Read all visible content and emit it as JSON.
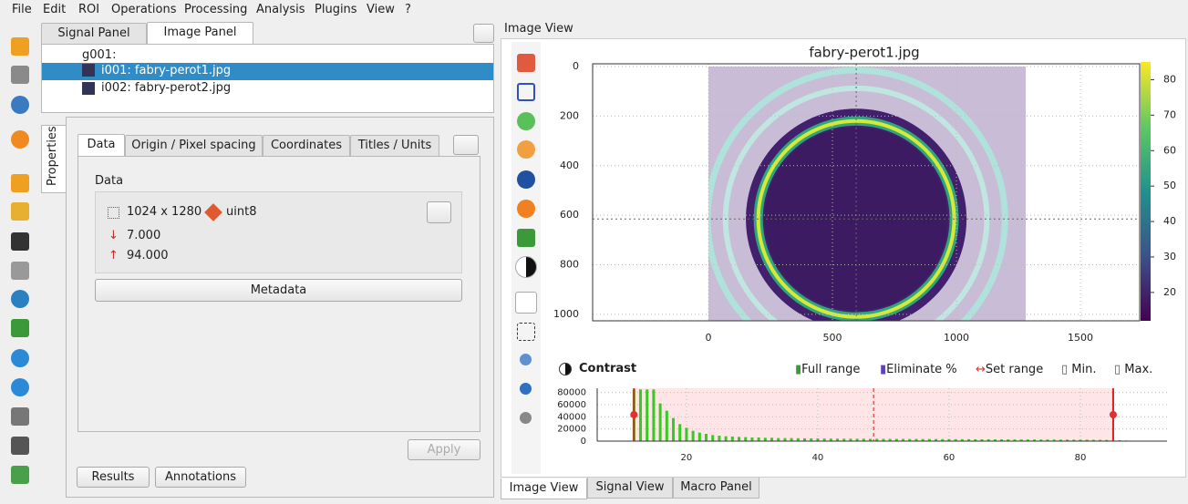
{
  "menu": [
    "File",
    "Edit",
    "ROI",
    "Operations",
    "Processing",
    "Analysis",
    "Plugins",
    "View",
    "?"
  ],
  "panel_tabs": [
    "Signal Panel",
    "Image Panel"
  ],
  "tree": {
    "group": "g001:",
    "items": [
      "i001: fabry-perot1.jpg",
      "i002: fabry-perot2.jpg"
    ]
  },
  "properties": {
    "side_tab": "Properties",
    "tabs": [
      "Data",
      "Origin / Pixel spacing",
      "Coordinates",
      "Titles / Units"
    ],
    "group_title": "Data",
    "shape": "1024 x 1280",
    "dtype": "uint8",
    "min": "7.000",
    "max": "94.000",
    "metadata_button": "Metadata",
    "apply_button": "Apply"
  },
  "bottom_buttons": [
    "Results",
    "Annotations"
  ],
  "image_view": {
    "title": "Image View",
    "plot": {
      "title": "fabry-perot1.jpg",
      "xlim": [
        -467,
        1739
      ],
      "ylim": [
        -11,
        1026
      ],
      "xticks": [
        0,
        500,
        1000,
        1500
      ],
      "yticks": [
        0,
        200,
        400,
        600,
        800,
        1000
      ],
      "image_width": 1280,
      "image_height": 1024,
      "colorbar": {
        "lim": [
          12,
          85
        ],
        "ticks": [
          20,
          30,
          40,
          50,
          60,
          70,
          80
        ]
      }
    },
    "contrast": {
      "title": "Contrast",
      "buttons": [
        "Full range",
        "Eliminate %",
        "Set range",
        "Min.",
        "Max."
      ],
      "histogram": {
        "xlim": [
          6.4,
          93.2
        ],
        "ylim": [
          0,
          87000
        ],
        "xticks": [
          20,
          40,
          60,
          80
        ],
        "yticks": [
          0,
          20000,
          40000,
          60000,
          80000
        ],
        "x": [
          12,
          13,
          14,
          15,
          16,
          17,
          18,
          19,
          20,
          21,
          22,
          23,
          24,
          25,
          26,
          27,
          28,
          29,
          30,
          31,
          32,
          33,
          34,
          35,
          36,
          37,
          38,
          39,
          40,
          41,
          42,
          43,
          44,
          45,
          46,
          47,
          48,
          49,
          50,
          51,
          52,
          53,
          54,
          55,
          56,
          57,
          58,
          59,
          60,
          61,
          62,
          63,
          64,
          65,
          66,
          67,
          68,
          69,
          70,
          71,
          72,
          73,
          74,
          75,
          76,
          77,
          78,
          79,
          80,
          81,
          82,
          83,
          84,
          85,
          86,
          87,
          88
        ],
        "counts": [
          85000,
          85000,
          85000,
          85000,
          62000,
          50000,
          38000,
          28000,
          22000,
          17000,
          14000,
          12000,
          10000,
          9000,
          8000,
          7500,
          7000,
          6500,
          6000,
          6000,
          5500,
          5500,
          5000,
          5000,
          5000,
          4800,
          4600,
          4500,
          4400,
          4300,
          4200,
          4100,
          4000,
          4000,
          3900,
          3900,
          3800,
          3800,
          3700,
          3700,
          3600,
          3600,
          3500,
          3500,
          3500,
          3400,
          3400,
          3300,
          3300,
          3200,
          3200,
          3100,
          3100,
          3000,
          3000,
          3000,
          2900,
          2900,
          2800,
          2800,
          2800,
          2700,
          2700,
          2600,
          2600,
          2500,
          2500,
          2400,
          2400,
          2300,
          2200,
          2100,
          2000,
          1900,
          1500,
          1000,
          600
        ],
        "range": [
          12,
          85
        ]
      }
    }
  },
  "view_tabs": [
    "Image View",
    "Signal View",
    "Macro Panel"
  ]
}
